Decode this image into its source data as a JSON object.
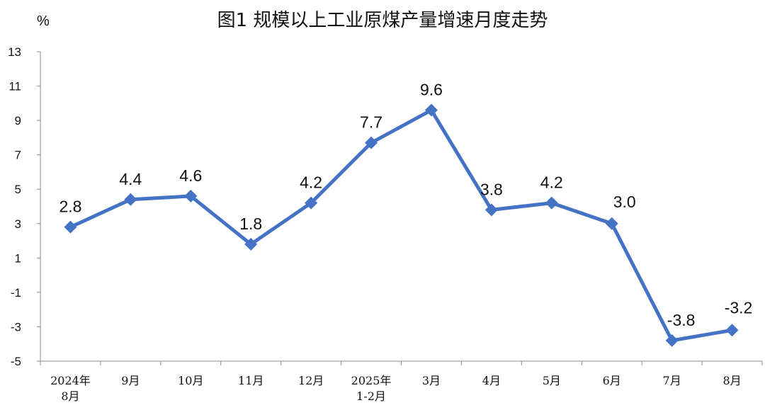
{
  "chart_data": {
    "type": "line",
    "title": "图1  规模以上工业原煤产量增速月度走势",
    "ylabel": "%",
    "xlabel": "",
    "ylim": [
      -5,
      13
    ],
    "yticks": [
      13,
      11,
      9,
      7,
      5,
      3,
      1,
      -1,
      -3,
      -5
    ],
    "grid": false,
    "legend": "none",
    "categories": [
      [
        "2024年",
        "8月"
      ],
      [
        "9月"
      ],
      [
        "10月"
      ],
      [
        "11月"
      ],
      [
        "12月"
      ],
      [
        "2025年",
        "1-2月"
      ],
      [
        "3月"
      ],
      [
        "4月"
      ],
      [
        "5月"
      ],
      [
        "6月"
      ],
      [
        "7月"
      ],
      [
        "8月"
      ]
    ],
    "series": [
      {
        "values": [
          2.8,
          4.4,
          4.6,
          1.8,
          4.2,
          7.7,
          9.6,
          3.8,
          4.2,
          3.0,
          -3.8,
          -3.2
        ],
        "data_labels": [
          "2.8",
          "4.4",
          "4.6",
          "1.8",
          "4.2",
          "7.7",
          "9.6",
          "3.8",
          "4.2",
          "3.0",
          "-3.8",
          "-3.2"
        ],
        "color": "#4472C4",
        "marker": "diamond"
      }
    ]
  }
}
